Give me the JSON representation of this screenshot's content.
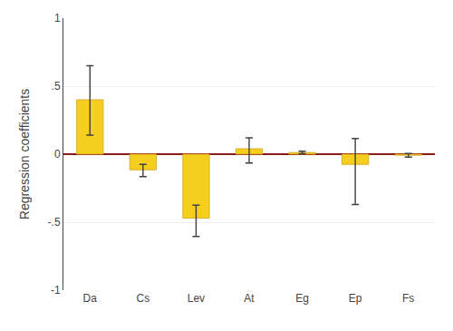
{
  "chart_data": {
    "type": "bar",
    "categories": [
      "Da",
      "Cs",
      "Lev",
      "At",
      "Eg",
      "Ep",
      "Fs"
    ],
    "values": [
      0.4,
      -0.115,
      -0.47,
      0.04,
      0.012,
      -0.075,
      -0.008
    ],
    "ci_upper": [
      0.65,
      -0.075,
      -0.375,
      0.12,
      0.022,
      0.115,
      0.005
    ],
    "ci_lower": [
      0.14,
      -0.165,
      -0.605,
      -0.065,
      0.003,
      -0.37,
      -0.022
    ],
    "color": "#F5CE1E",
    "ylabel": "Regression coefficients",
    "ylim": [
      -1.0,
      1.0
    ],
    "yticks": [
      -1,
      {
        "value": -0.5,
        "label": "-.5"
      },
      0,
      {
        "value": 0.5,
        "label": ".5"
      },
      1
    ],
    "grid": true
  }
}
